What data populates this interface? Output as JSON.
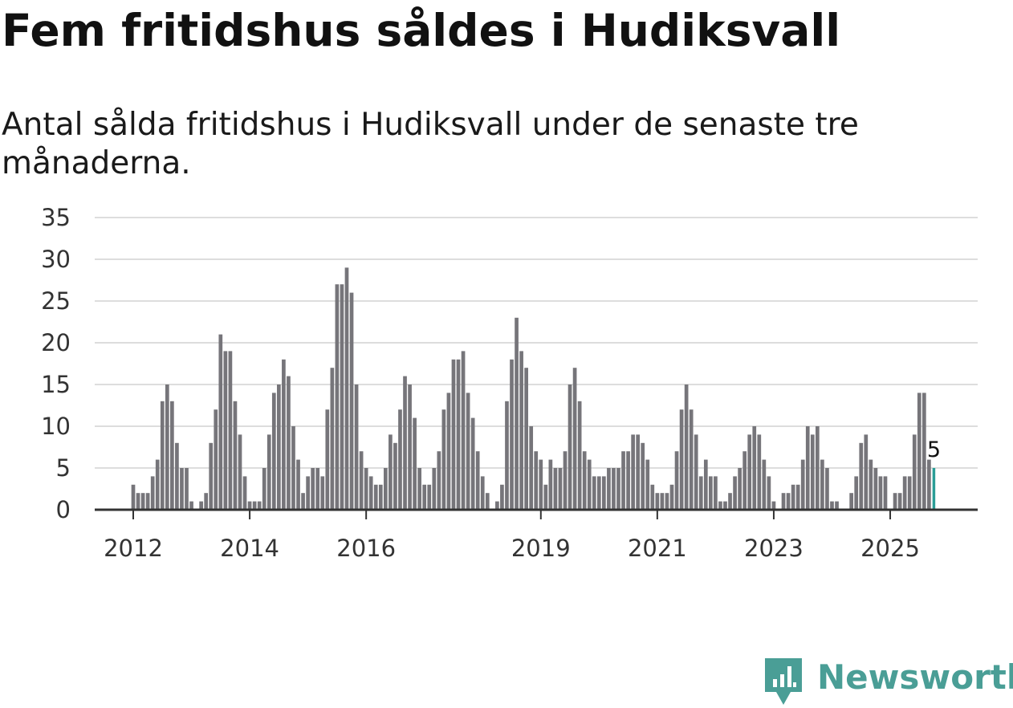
{
  "header": {
    "title": "Fem fritidshus såldes i Hudiksvall",
    "subtitle": "Antal sålda fritidshus i Hudiksvall under de senaste tre månaderna."
  },
  "branding": {
    "name": "Newsworthy",
    "color": "#4a9e96"
  },
  "colors": {
    "bar": "#76757a",
    "highlight": "#2a9d96",
    "grid": "#dddddd",
    "axis": "#333333"
  },
  "chart_data": {
    "type": "bar",
    "title": "Fem fritidshus såldes i Hudiksvall",
    "subtitle": "Antal sålda fritidshus i Hudiksvall under de senaste tre månaderna.",
    "xlabel": "",
    "ylabel": "",
    "ylim": [
      0,
      35
    ],
    "yticks": [
      0,
      5,
      10,
      15,
      20,
      25,
      30,
      35
    ],
    "grid": true,
    "start": "2012-01",
    "frequency": "monthly (rolling three-month sum)",
    "xtick_labels": [
      {
        "label": "2012",
        "index": 0
      },
      {
        "label": "2014",
        "index": 24
      },
      {
        "label": "2016",
        "index": 48
      },
      {
        "label": "2019",
        "index": 84
      },
      {
        "label": "2021",
        "index": 108
      },
      {
        "label": "2023",
        "index": 132
      },
      {
        "label": "2025",
        "index": 156
      }
    ],
    "values": [
      3,
      2,
      2,
      2,
      4,
      6,
      13,
      15,
      13,
      8,
      5,
      5,
      1,
      0,
      1,
      2,
      8,
      12,
      21,
      19,
      19,
      13,
      9,
      4,
      1,
      1,
      1,
      5,
      9,
      14,
      15,
      18,
      16,
      10,
      6,
      2,
      4,
      5,
      5,
      4,
      12,
      17,
      27,
      27,
      29,
      26,
      15,
      7,
      5,
      4,
      3,
      3,
      5,
      9,
      8,
      12,
      16,
      15,
      11,
      5,
      3,
      3,
      5,
      7,
      12,
      14,
      18,
      18,
      19,
      14,
      11,
      7,
      4,
      2,
      0,
      1,
      3,
      13,
      18,
      23,
      19,
      17,
      10,
      7,
      6,
      3,
      6,
      5,
      5,
      7,
      15,
      17,
      13,
      7,
      6,
      4,
      4,
      4,
      5,
      5,
      5,
      7,
      7,
      9,
      9,
      8,
      6,
      3,
      2,
      2,
      2,
      3,
      7,
      12,
      15,
      12,
      9,
      4,
      6,
      4,
      4,
      1,
      1,
      2,
      4,
      5,
      7,
      9,
      10,
      9,
      6,
      4,
      1,
      0,
      2,
      2,
      3,
      3,
      6,
      10,
      9,
      10,
      6,
      5,
      1,
      1,
      0,
      0,
      2,
      4,
      8,
      9,
      6,
      5,
      4,
      4,
      0,
      2,
      2,
      4,
      4,
      9,
      14,
      14,
      6,
      5
    ],
    "highlight_last": true,
    "last_value_label": "5"
  }
}
